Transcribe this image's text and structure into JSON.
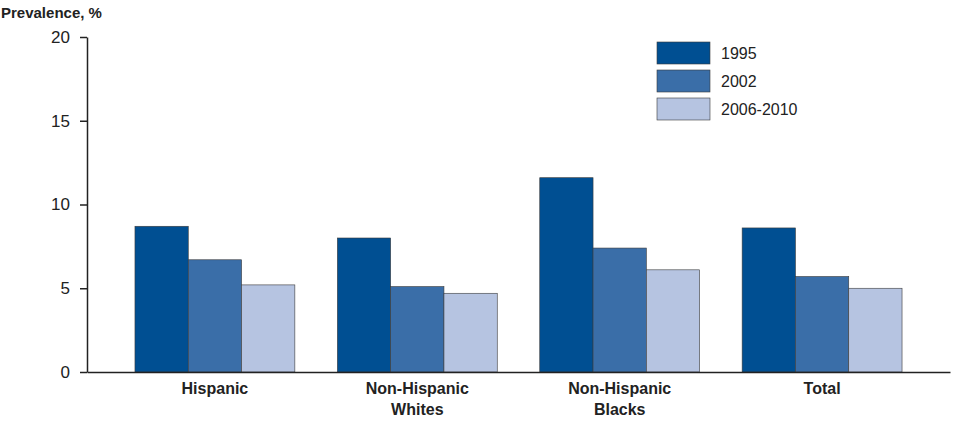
{
  "chart_data": {
    "type": "bar",
    "y_label": "Prevalence, %",
    "categories": [
      "Hispanic",
      "Non-Hispanic Whites",
      "Non-Hispanic Blacks",
      "Total"
    ],
    "series": [
      {
        "name": "1995",
        "color": "#004f92",
        "values": [
          8.7,
          8.0,
          11.6,
          8.6
        ]
      },
      {
        "name": "2002",
        "color": "#3a6ea8",
        "values": [
          6.7,
          5.1,
          7.4,
          5.7
        ]
      },
      {
        "name": "2006-2010",
        "color": "#b6c4e1",
        "values": [
          5.2,
          4.7,
          6.1,
          5.0
        ]
      }
    ],
    "ylim": [
      0,
      20
    ],
    "yticks": [
      0,
      5,
      10,
      15,
      20
    ],
    "grid": false,
    "legend": "upper right"
  }
}
